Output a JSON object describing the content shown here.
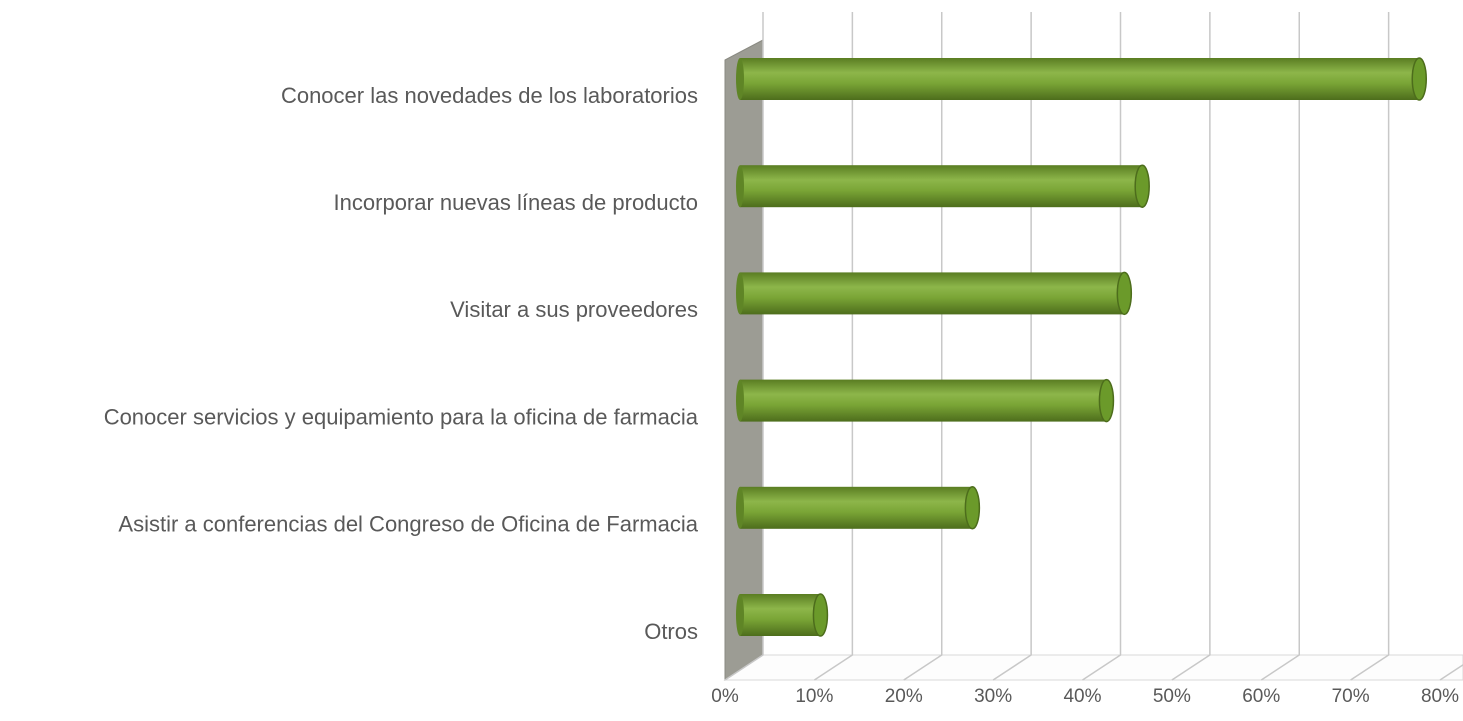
{
  "chart_data": {
    "type": "bar3d",
    "categories": [
      "Conocer las novedades de los laboratorios",
      "Incorporar nuevas líneas de producto",
      "Visitar a sus proveedores",
      "Conocer servicios y equipamiento para la oficina de farmacia",
      "Asistir a conferencias del Congreso de Oficina de Farmacia",
      "Otros"
    ],
    "values": [
      76,
      45,
      43,
      41,
      26,
      9
    ],
    "color": "#77a132",
    "xlim": [
      0,
      80
    ],
    "xticks": [
      {
        "value": 0,
        "label": "0%"
      },
      {
        "value": 10,
        "label": "10%"
      },
      {
        "value": 20,
        "label": "20%"
      },
      {
        "value": 30,
        "label": "30%"
      },
      {
        "value": 40,
        "label": "40%"
      },
      {
        "value": 50,
        "label": "50%"
      },
      {
        "value": 60,
        "label": "60%"
      },
      {
        "value": 70,
        "label": "70%"
      },
      {
        "value": 80,
        "label": "80%"
      }
    ],
    "grid": true
  }
}
